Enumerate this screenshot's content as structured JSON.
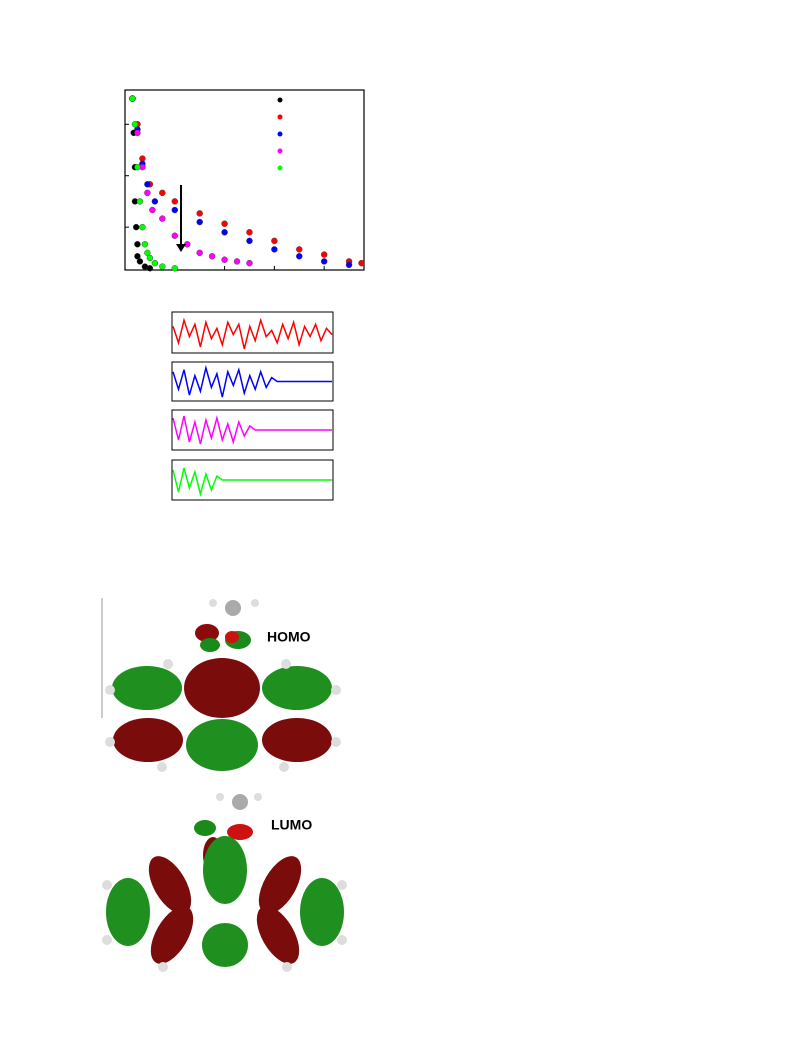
{
  "chart_data": [
    {
      "type": "scatter",
      "xlim": [
        0,
        96
      ],
      "ylim": [
        0,
        1.05
      ],
      "xticks": [
        20,
        40,
        60,
        80
      ],
      "yticks": [
        0.25,
        0.55,
        0.85
      ],
      "series": [
        {
          "color": "#000000",
          "x": [
            3,
            3.5,
            4,
            4,
            4.5,
            5,
            5,
            6,
            8,
            10
          ],
          "values": [
            1.0,
            0.8,
            0.6,
            0.4,
            0.25,
            0.15,
            0.08,
            0.05,
            0.02,
            0.01
          ]
        },
        {
          "color": "#ff0000",
          "x": [
            3,
            5,
            7,
            10,
            15,
            20,
            30,
            40,
            50,
            60,
            70,
            80,
            90,
            95
          ],
          "values": [
            1.0,
            0.85,
            0.65,
            0.5,
            0.45,
            0.4,
            0.33,
            0.27,
            0.22,
            0.17,
            0.12,
            0.09,
            0.05,
            0.04
          ]
        },
        {
          "color": "#0000ff",
          "x": [
            3,
            5,
            7,
            9,
            12,
            20,
            30,
            40,
            50,
            60,
            70,
            80,
            90
          ],
          "values": [
            1.0,
            0.82,
            0.62,
            0.5,
            0.4,
            0.35,
            0.28,
            0.22,
            0.17,
            0.12,
            0.08,
            0.05,
            0.03
          ]
        },
        {
          "color": "#ff00ff",
          "x": [
            3,
            5,
            7,
            9,
            11,
            15,
            20,
            25,
            30,
            35,
            40,
            45,
            50
          ],
          "values": [
            1.0,
            0.8,
            0.6,
            0.45,
            0.35,
            0.3,
            0.2,
            0.15,
            0.1,
            0.08,
            0.06,
            0.05,
            0.04
          ]
        },
        {
          "color": "#00ff00",
          "x": [
            3,
            4,
            5,
            6,
            7,
            8,
            9,
            10,
            12,
            15,
            20
          ],
          "values": [
            1.0,
            0.85,
            0.6,
            0.4,
            0.25,
            0.15,
            0.1,
            0.07,
            0.04,
            0.02,
            0.01
          ]
        }
      ]
    },
    {
      "type": "line",
      "color": "#ff0000",
      "ylim": [
        -1,
        1
      ],
      "values": [
        0.3,
        -0.5,
        0.6,
        -0.2,
        0.4,
        -0.7,
        0.5,
        -0.3,
        0.2,
        -0.6,
        0.5,
        -0.1,
        0.4,
        -0.8,
        0.3,
        -0.4,
        0.6,
        -0.2,
        0.1,
        -0.5,
        0.4,
        -0.3,
        0.5,
        -0.6,
        0.3,
        -0.2,
        0.4,
        -0.4,
        0.2,
        -0.1
      ]
    },
    {
      "type": "line",
      "color": "#0000ff",
      "ylim": [
        -1,
        1
      ],
      "values": [
        0.5,
        -0.4,
        0.6,
        -0.7,
        0.3,
        -0.5,
        0.7,
        -0.3,
        0.4,
        -0.8,
        0.5,
        -0.2,
        0.6,
        -0.6,
        0.3,
        -0.4,
        0.5,
        -0.3,
        0.2,
        0,
        0,
        0,
        0,
        0,
        0,
        0,
        0,
        0,
        0,
        0
      ]
    },
    {
      "type": "line",
      "color": "#ff00ff",
      "ylim": [
        -1,
        1
      ],
      "values": [
        0.6,
        -0.5,
        0.7,
        -0.6,
        0.4,
        -0.7,
        0.5,
        -0.4,
        0.6,
        -0.5,
        0.3,
        -0.6,
        0.4,
        -0.3,
        0.2,
        0,
        0,
        0,
        0,
        0,
        0,
        0,
        0,
        0,
        0,
        0,
        0,
        0,
        0,
        0
      ]
    },
    {
      "type": "line",
      "color": "#00ff00",
      "ylim": [
        -1,
        1
      ],
      "values": [
        0.5,
        -0.6,
        0.6,
        -0.4,
        0.4,
        -0.7,
        0.3,
        -0.5,
        0.2,
        0,
        0,
        0,
        0,
        0,
        0,
        0,
        0,
        0,
        0,
        0,
        0,
        0,
        0,
        0,
        0,
        0,
        0,
        0,
        0,
        0
      ]
    }
  ],
  "labels": {
    "homo": "HOMO",
    "lumo": "LUMO"
  }
}
